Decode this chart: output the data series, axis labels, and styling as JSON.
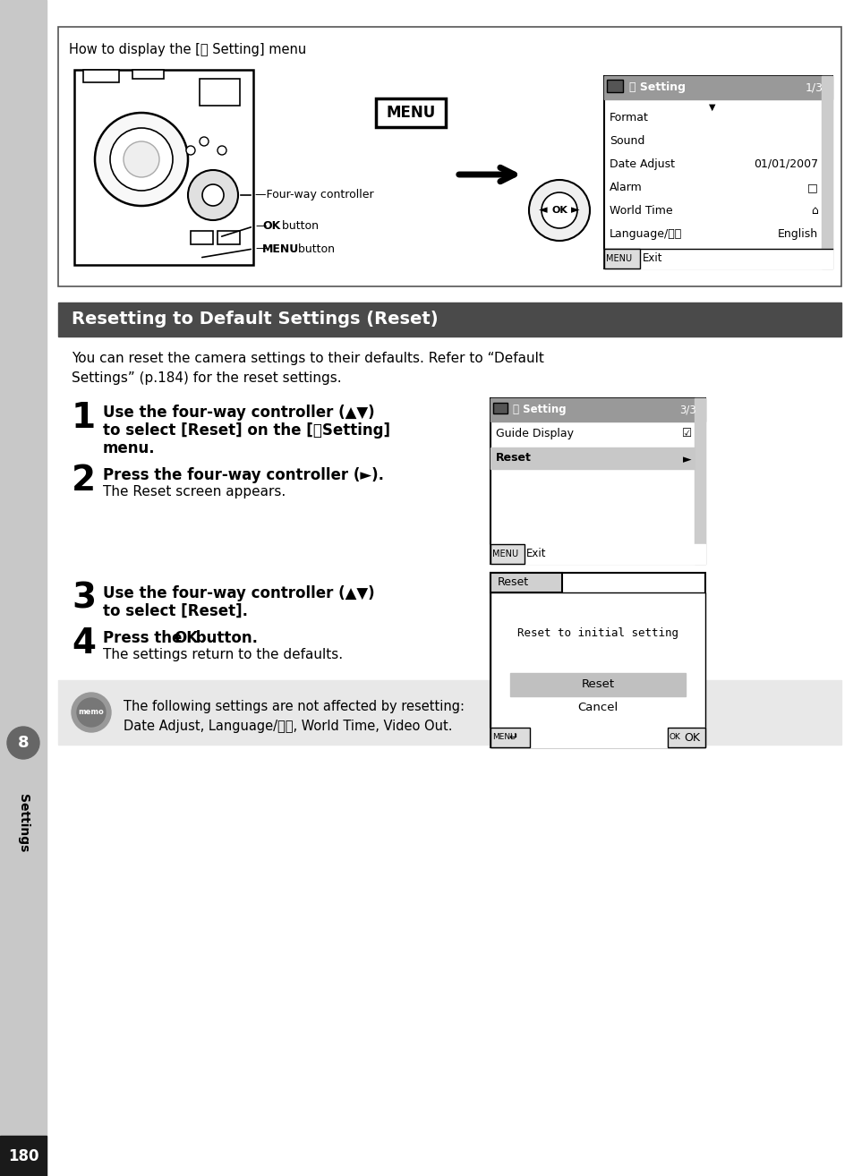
{
  "page_bg": "#ffffff",
  "sidebar_bg": "#c8c8c8",
  "page_number_bg": "#1a1a1a",
  "page_number_color": "#ffffff",
  "page_number": "180",
  "sidebar_number": "8",
  "sidebar_text": "Settings",
  "top_box_title": "How to display the [⤶ Setting] menu",
  "section_title": "Resetting to Default Settings (Reset)",
  "section_title_bg": "#4a4a4a",
  "section_title_color": "#ffffff",
  "intro_line1": "You can reset the camera settings to their defaults. Refer to “Default",
  "intro_line2": "Settings” (p.184) for the reset settings.",
  "step1_bold1": "Use the four-way controller (▲▼)",
  "step1_bold2": "to select [Reset] on the [⤶Setting]",
  "step1_bold3": "menu.",
  "step2_bold": "Press the four-way controller (►).",
  "step2_normal": "The Reset screen appears.",
  "step3_bold1": "Use the four-way controller (▲▼)",
  "step3_bold2": "to select [Reset].",
  "step4_bold": "Press the  OK  button.",
  "step4_normal": "The settings return to the defaults.",
  "memo_bg": "#e8e8e8",
  "memo_text1": "The following settings are not affected by resetting:",
  "memo_text2": "Date Adjust, Language/言語, World Time, Video Out.",
  "setting_menu_items": [
    [
      "Format",
      ""
    ],
    [
      "Sound",
      ""
    ],
    [
      "Date Adjust",
      "01/01/2007"
    ],
    [
      "Alarm",
      "□"
    ],
    [
      "World Time",
      "⌂"
    ],
    [
      "Language/言語",
      "English"
    ]
  ]
}
